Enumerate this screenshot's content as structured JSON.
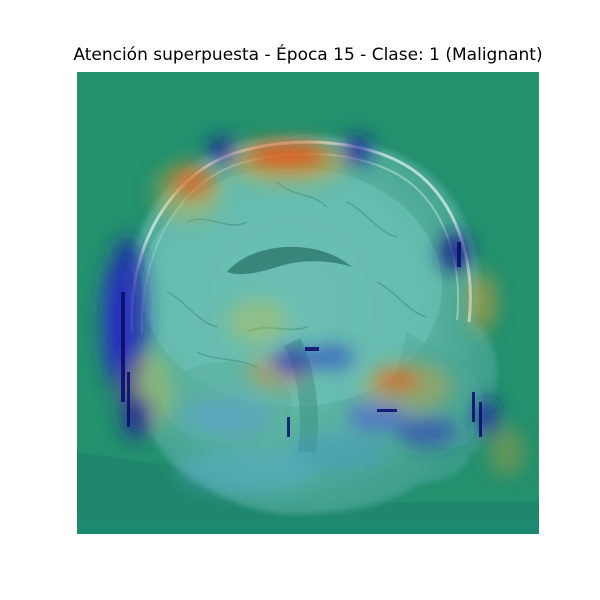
{
  "figure": {
    "title": "Atención superpuesta - Época 15 - Clase: 1 (Malignant)"
  },
  "overlay": {
    "colormap": "jet",
    "base_color": "#1b8c76",
    "content": "sagittal head MRI with attention heatmap"
  }
}
